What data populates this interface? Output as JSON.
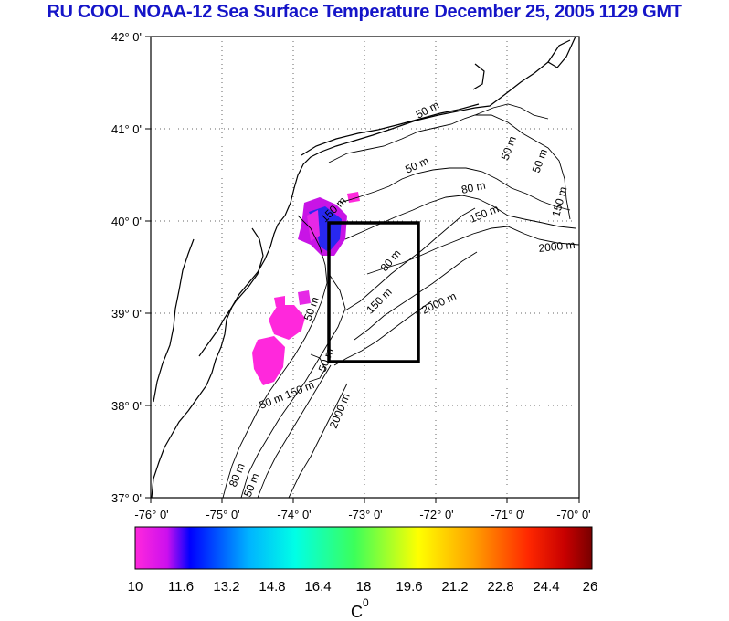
{
  "title": "RU COOL  NOAA-12 Sea Surface Temperature December 25, 2005 1129 GMT",
  "lat_labels": [
    "42° 0'",
    "41° 0'",
    "40° 0'",
    "39° 0'",
    "38° 0'",
    "37° 0'"
  ],
  "lon_labels": [
    "-76° 0'",
    "-75° 0'",
    "-74° 0'",
    "-73° 0'",
    "-72° 0'",
    "-71° 0'",
    "-70° 0'"
  ],
  "contour_labels": {
    "c1": "50 m",
    "c2": "50 m",
    "c3": "80 m",
    "c4": "150 m",
    "c5": "2000 m",
    "c6": "80 m",
    "c7": "150 m",
    "c8": "2000 m",
    "c9": "50 m",
    "c10": "50 m",
    "c11": "50 m 150 m",
    "c12": "2000 m",
    "c13": "80 m",
    "c14": "50 m",
    "c15": "150 m",
    "c16": "50 m",
    "c17": "150 m",
    "c18": "50 m"
  },
  "study_box": {
    "lon": [
      -73.5,
      -72.5
    ],
    "lat": [
      38.5,
      40.0
    ]
  },
  "colorbar": {
    "ticks": [
      "10",
      "11.6",
      "13.2",
      "14.8",
      "16.4",
      "18",
      "19.6",
      "21.2",
      "22.8",
      "24.4",
      "26"
    ],
    "unit_label": "C",
    "unit_superscript": "0",
    "colors": [
      "#ff28dc",
      "#cc10ee",
      "#0000ff",
      "#00b4ff",
      "#00ffe6",
      "#3cff5a",
      "#ffff00",
      "#ffa000",
      "#ff2800",
      "#c80000",
      "#780000"
    ]
  }
}
